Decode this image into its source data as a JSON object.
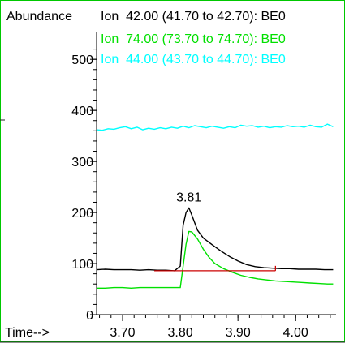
{
  "chart_data": {
    "type": "line",
    "ylabel": "Abundance",
    "xlabel": "Time-->",
    "xlim": [
      3.655,
      4.07
    ],
    "ylim": [
      0,
      540
    ],
    "x_ticks": [
      3.7,
      3.8,
      3.9,
      4.0
    ],
    "x_tick_labels": [
      "3.70",
      "3.80",
      "3.90",
      "4.00"
    ],
    "y_ticks": [
      0,
      100,
      200,
      300,
      400,
      500
    ],
    "y_tick_labels": [
      "0",
      "100",
      "200",
      "300",
      "400",
      "500"
    ],
    "grid": false,
    "legend_position": "top",
    "series": [
      {
        "name": "Ion  42.00 (41.70 to 42.70): BE0",
        "color": "#000000",
        "x": [
          3.655,
          3.67,
          3.685,
          3.7,
          3.715,
          3.73,
          3.745,
          3.76,
          3.775,
          3.79,
          3.8,
          3.805,
          3.81,
          3.815,
          3.82,
          3.83,
          3.84,
          3.855,
          3.87,
          3.885,
          3.9,
          3.915,
          3.93,
          3.945,
          3.96,
          3.975,
          3.99,
          4.005,
          4.02,
          4.035,
          4.05,
          4.065
        ],
        "y": [
          88,
          89,
          88,
          88,
          88,
          87,
          88,
          87,
          87,
          86,
          95,
          175,
          200,
          209,
          195,
          165,
          150,
          137,
          125,
          114,
          105,
          98,
          94,
          92,
          91,
          90,
          90,
          89,
          89,
          89,
          88,
          88
        ]
      },
      {
        "name": "Ion  74.00 (73.70 to 74.70): BE0",
        "color": "#00e000",
        "x": [
          3.655,
          3.67,
          3.685,
          3.7,
          3.715,
          3.73,
          3.745,
          3.76,
          3.775,
          3.79,
          3.8,
          3.81,
          3.815,
          3.82,
          3.83,
          3.84,
          3.85,
          3.86,
          3.875,
          3.89,
          3.905,
          3.92,
          3.935,
          3.95,
          3.965,
          3.98,
          3.995,
          4.01,
          4.025,
          4.04,
          4.055,
          4.065
        ],
        "y": [
          52,
          52,
          53,
          53,
          52,
          53,
          53,
          53,
          53,
          53,
          53,
          138,
          163,
          162,
          148,
          128,
          112,
          100,
          90,
          83,
          77,
          73,
          70,
          68,
          66,
          65,
          64,
          63,
          62,
          61,
          60,
          60
        ]
      },
      {
        "name": "Ion  44.00 (43.70 to 44.70): BE0",
        "color": "#00ffff",
        "x": [
          3.655,
          3.665,
          3.675,
          3.685,
          3.695,
          3.705,
          3.715,
          3.725,
          3.735,
          3.745,
          3.755,
          3.765,
          3.775,
          3.785,
          3.795,
          3.805,
          3.815,
          3.825,
          3.835,
          3.845,
          3.855,
          3.865,
          3.875,
          3.885,
          3.895,
          3.905,
          3.915,
          3.925,
          3.935,
          3.945,
          3.955,
          3.965,
          3.975,
          3.985,
          3.995,
          4.005,
          4.015,
          4.025,
          4.035,
          4.045,
          4.055,
          4.065
        ],
        "y": [
          362,
          361,
          364,
          363,
          366,
          368,
          364,
          367,
          362,
          365,
          363,
          366,
          364,
          367,
          365,
          369,
          366,
          370,
          368,
          366,
          369,
          367,
          365,
          368,
          366,
          371,
          369,
          370,
          367,
          369,
          366,
          368,
          367,
          370,
          368,
          369,
          367,
          371,
          368,
          367,
          373,
          368
        ]
      }
    ],
    "baseline": {
      "color": "#cc0000",
      "x": [
        3.755,
        3.965
      ],
      "y": [
        86,
        86
      ]
    },
    "annotations": [
      {
        "text": "3.81",
        "x": 3.815,
        "y": 209
      }
    ]
  }
}
